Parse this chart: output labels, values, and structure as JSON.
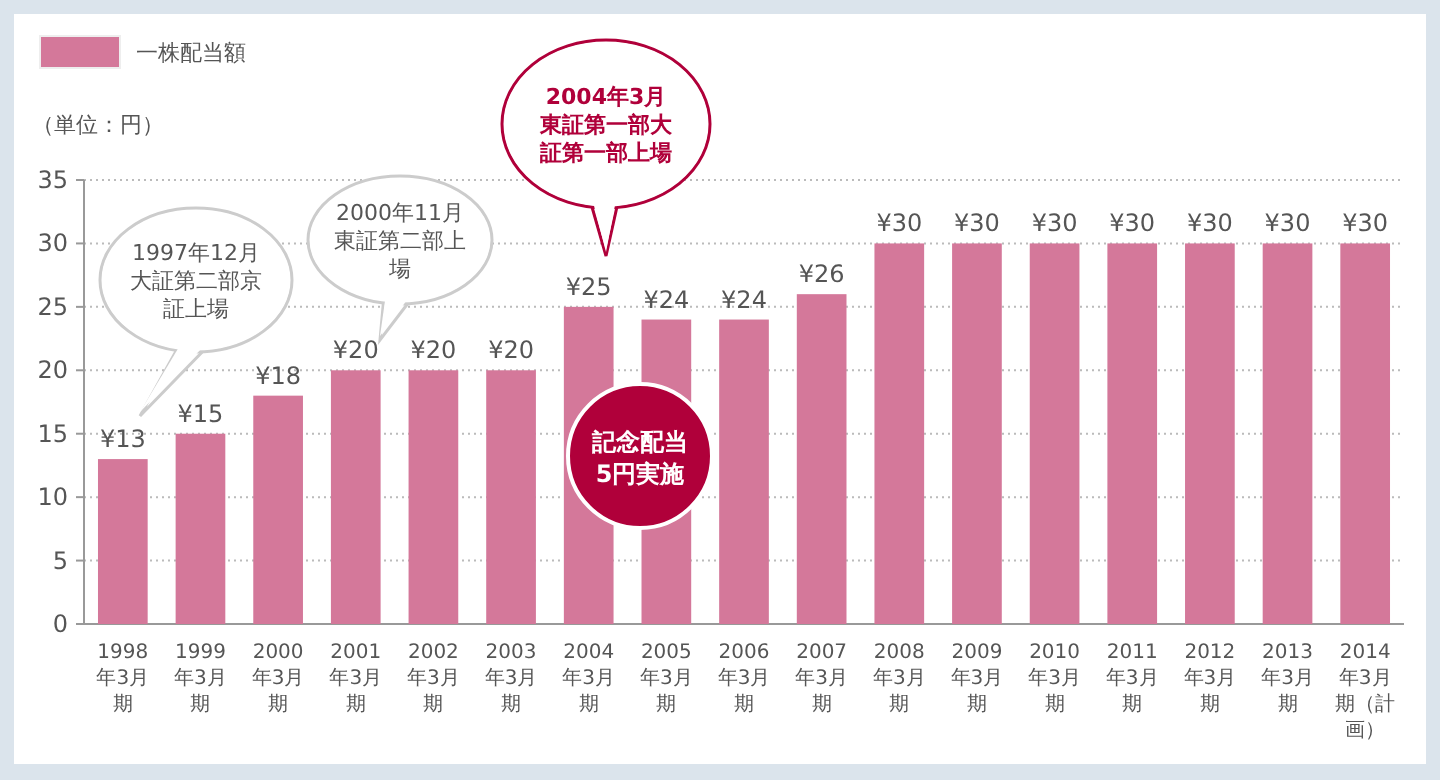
{
  "chart_data": {
    "type": "bar",
    "ylabel": "（単位：円）",
    "categories": [
      "1998年3月期",
      "1999年3月期",
      "2000年3月期",
      "2001年3月期",
      "2002年3月期",
      "2003年3月期",
      "2004年3月期",
      "2005年3月期",
      "2006年3月期",
      "2007年3月期",
      "2008年3月期",
      "2009年3月期",
      "2010年3月期",
      "2011年3月期",
      "2012年3月期",
      "2013年3月期",
      "2014年3月期（計画）"
    ],
    "series": [
      {
        "name": "一株配当額",
        "color": "#d4789a",
        "values": [
          13,
          15,
          18,
          20,
          20,
          20,
          25,
          24,
          24,
          26,
          30,
          30,
          30,
          30,
          30,
          30,
          30
        ],
        "value_labels": [
          "¥13",
          "¥15",
          "¥18",
          "¥20",
          "¥20",
          "¥20",
          "¥25",
          "¥24",
          "¥24",
          "¥26",
          "¥30",
          "¥30",
          "¥30",
          "¥30",
          "¥30",
          "¥30",
          "¥30"
        ]
      }
    ],
    "ylim": [
      0,
      35
    ],
    "yticks": [
      0,
      5,
      10,
      15,
      20,
      25,
      30,
      35
    ],
    "grid": "y",
    "legend": "top left",
    "annotations": [
      "1997年12月大証第二部京証上場",
      "2000年11月東証第二部上場",
      "2004年3月東証第一部大証第一部上場",
      "記念配当5円実施"
    ]
  }
}
